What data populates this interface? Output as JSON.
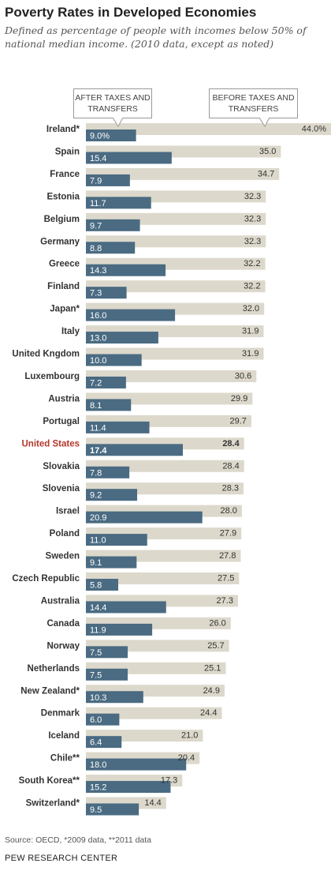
{
  "title": "Poverty Rates in Developed Economies",
  "subtitle": "Defined as percentage of people with incomes below 50% of national median income. (2010 data, except as noted)",
  "callouts": {
    "after": "AFTER TAXES AND TRANSFERS",
    "before": "BEFORE TAXES AND TRANSFERS"
  },
  "colors": {
    "after": "#4a6b82",
    "before": "#dcd8cb",
    "highlight": "#b5362a"
  },
  "footer": {
    "source": "Source: OECD, *2009 data, **2011 data",
    "org": "PEW RESEARCH CENTER"
  },
  "chart_data": {
    "type": "bar",
    "orientation": "horizontal",
    "categories": [
      "Ireland*",
      "Spain",
      "France",
      "Estonia",
      "Belgium",
      "Germany",
      "Greece",
      "Finland",
      "Japan*",
      "Italy",
      "United Kngdom",
      "Luxembourg",
      "Austria",
      "Portugal",
      "United States",
      "Slovakia",
      "Slovenia",
      "Israel",
      "Poland",
      "Sweden",
      "Czech Republic",
      "Australia",
      "Canada",
      "Norway",
      "Netherlands",
      "New Zealand*",
      "Denmark",
      "Iceland",
      "Chile**",
      "South Korea**",
      "Switzerland*"
    ],
    "highlight": "United States",
    "series": [
      {
        "name": "BEFORE TAXES AND TRANSFERS",
        "values": [
          44.0,
          35.0,
          34.7,
          32.3,
          32.3,
          32.3,
          32.2,
          32.2,
          32.0,
          31.9,
          31.9,
          30.6,
          29.9,
          29.7,
          28.4,
          28.4,
          28.3,
          28.0,
          27.9,
          27.8,
          27.5,
          27.3,
          26.0,
          25.7,
          25.1,
          24.9,
          24.4,
          21.0,
          20.4,
          17.3,
          14.4
        ],
        "labels": [
          "44.0%",
          "35.0",
          "34.7",
          "32.3",
          "32.3",
          "32.3",
          "32.2",
          "32.2",
          "32.0",
          "31.9",
          "31.9",
          "30.6",
          "29.9",
          "29.7",
          "28.4",
          "28.4",
          "28.3",
          "28.0",
          "27.9",
          "27.8",
          "27.5",
          "27.3",
          "26.0",
          "25.7",
          "25.1",
          "24.9",
          "24.4",
          "21.0",
          "20.4",
          "17.3",
          "14.4"
        ]
      },
      {
        "name": "AFTER TAXES AND TRANSFERS",
        "values": [
          9.0,
          15.4,
          7.9,
          11.7,
          9.7,
          8.8,
          14.3,
          7.3,
          16.0,
          13.0,
          10.0,
          7.2,
          8.1,
          11.4,
          17.4,
          7.8,
          9.2,
          20.9,
          11.0,
          9.1,
          5.8,
          14.4,
          11.9,
          7.5,
          7.5,
          10.3,
          6.0,
          6.4,
          18.0,
          15.2,
          9.5
        ],
        "labels": [
          "9.0%",
          "15.4",
          "7.9",
          "11.7",
          "9.7",
          "8.8",
          "14.3",
          "7.3",
          "16.0",
          "13.0",
          "10.0",
          "7.2",
          "8.1",
          "11.4",
          "17.4",
          "7.8",
          "9.2",
          "20.9",
          "11.0",
          "9.1",
          "5.8",
          "14.4",
          "11.9",
          "7.5",
          "7.5",
          "10.3",
          "6.0",
          "6.4",
          "18.0",
          "15.2",
          "9.5"
        ]
      }
    ],
    "xlim": [
      0,
      44.0
    ],
    "grid": false,
    "legend": "callouts-top"
  }
}
